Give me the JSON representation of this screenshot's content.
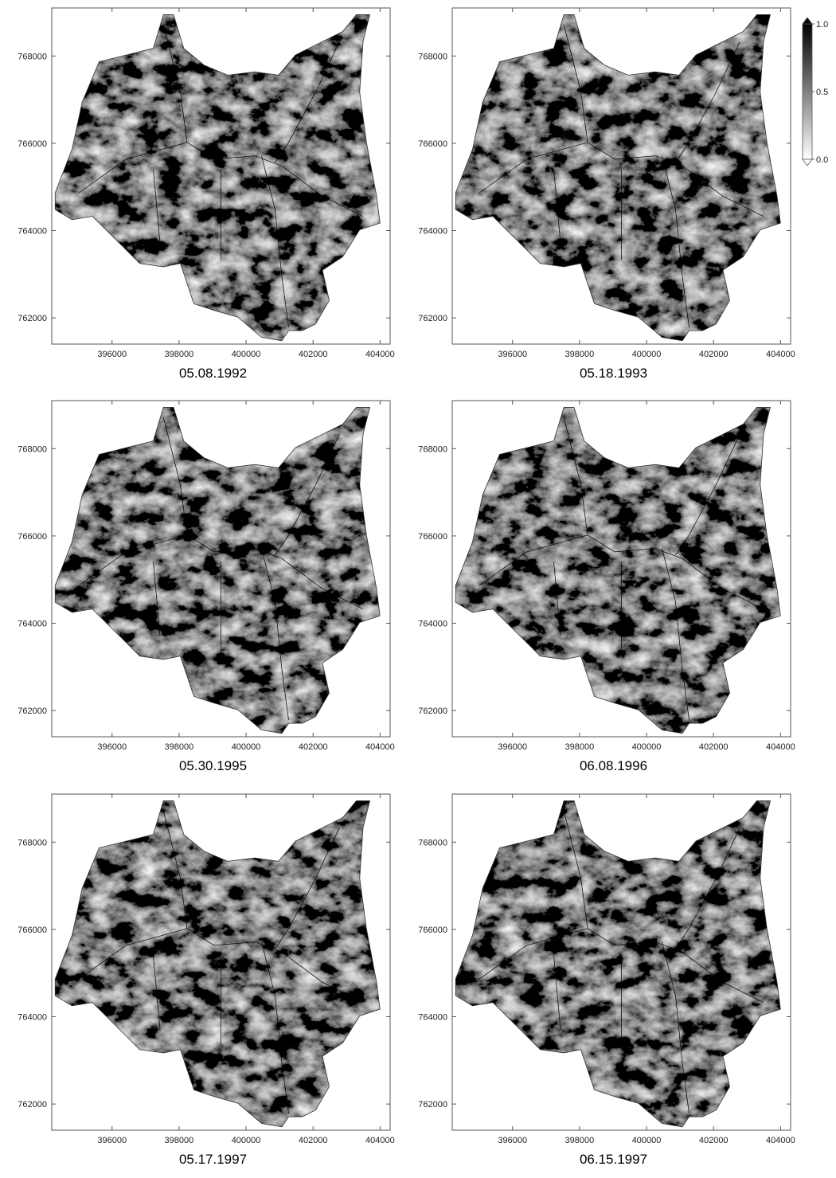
{
  "chart_data": [
    {
      "type": "map",
      "title": "05.08.1992",
      "xlim": [
        394200,
        404300
      ],
      "ylim": [
        761400,
        769100
      ],
      "xticks": [
        396000,
        398000,
        400000,
        402000,
        404000
      ],
      "yticks": [
        762000,
        764000,
        766000,
        768000
      ]
    },
    {
      "type": "map",
      "title": "05.18.1993",
      "xlim": [
        394200,
        404300
      ],
      "ylim": [
        761400,
        769100
      ],
      "xticks": [
        396000,
        398000,
        400000,
        402000,
        404000
      ],
      "yticks": [
        762000,
        764000,
        766000,
        768000
      ]
    },
    {
      "type": "map",
      "title": "05.30.1995",
      "xlim": [
        394200,
        404300
      ],
      "ylim": [
        761400,
        769100
      ],
      "xticks": [
        396000,
        398000,
        400000,
        402000,
        404000
      ],
      "yticks": [
        762000,
        764000,
        766000,
        768000
      ]
    },
    {
      "type": "map",
      "title": "06.08.1996",
      "xlim": [
        394200,
        404300
      ],
      "ylim": [
        761400,
        769100
      ],
      "xticks": [
        396000,
        398000,
        400000,
        402000,
        404000
      ],
      "yticks": [
        762000,
        764000,
        766000,
        768000
      ]
    },
    {
      "type": "map",
      "title": "05.17.1997",
      "xlim": [
        394200,
        404300
      ],
      "ylim": [
        761400,
        769100
      ],
      "xticks": [
        396000,
        398000,
        400000,
        402000,
        404000
      ],
      "yticks": [
        762000,
        764000,
        766000,
        768000
      ]
    },
    {
      "type": "map",
      "title": "06.15.1997",
      "xlim": [
        394200,
        404300
      ],
      "ylim": [
        761400,
        769100
      ],
      "xticks": [
        396000,
        398000,
        400000,
        402000,
        404000
      ],
      "yticks": [
        762000,
        764000,
        766000,
        768000
      ]
    }
  ],
  "colorbar": {
    "lim": [
      0,
      1
    ],
    "ticks": [
      {
        "value": 1,
        "label": "1.0"
      },
      0.5,
      {
        "value": 0,
        "label": "0.0"
      }
    ]
  }
}
